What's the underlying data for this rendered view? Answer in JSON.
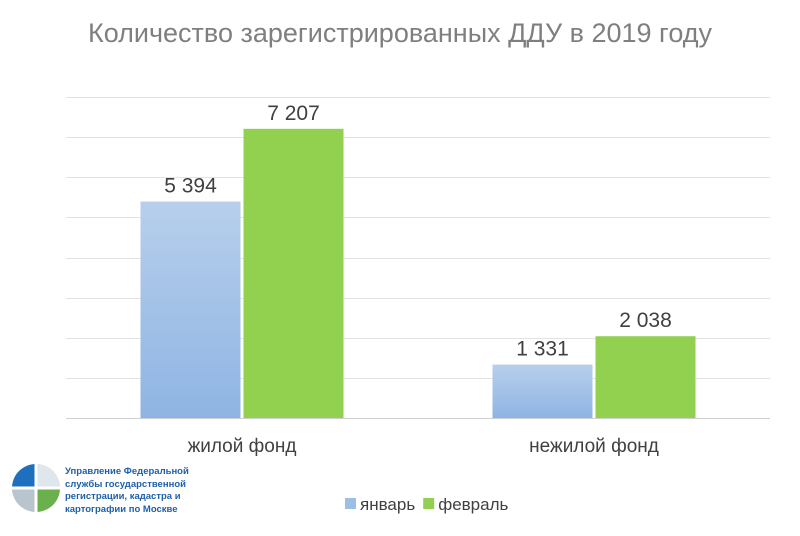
{
  "chart_data": {
    "type": "bar",
    "title": "Количество зарегистрированных ДДУ в 2019 году",
    "categories": [
      "жилой фонд",
      "нежилой фонд"
    ],
    "series": [
      {
        "name": "январь",
        "values": [
          5394,
          1331
        ],
        "labels": [
          "5 394",
          "1 331"
        ],
        "color": "#9dbfe6"
      },
      {
        "name": "февраль",
        "values": [
          7207,
          2038
        ],
        "labels": [
          "7 207",
          "2 038"
        ],
        "color": "#92d050"
      }
    ],
    "ylim": [
      0,
      8000
    ],
    "grid": true,
    "legend": "bottom"
  },
  "logo": {
    "text": "Управление Федеральной службы государственной регистрации, кадастра и картографии по Москве",
    "colors": {
      "blue": "#1f6fbf",
      "green": "#6ab04c",
      "light": "#c9d3dc"
    }
  }
}
